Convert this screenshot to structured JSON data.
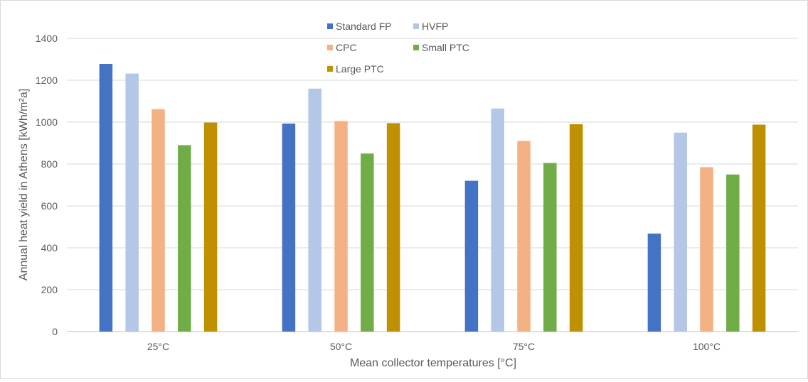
{
  "chart_data": {
    "type": "bar",
    "title": "",
    "xlabel": "Mean collector temperatures [°C]",
    "ylabel": "Annual heat yield in Athens [kWh/m²a]",
    "categories": [
      "25°C",
      "50°C",
      "75°C",
      "100°C"
    ],
    "ylim": [
      0,
      1400
    ],
    "yticks": [
      0,
      200,
      400,
      600,
      800,
      1000,
      1200,
      1400
    ],
    "grid": true,
    "legend_position": "top-center",
    "series": [
      {
        "name": "Standard FP",
        "color": "#4472c4",
        "values": [
          1278,
          993,
          720,
          468
        ]
      },
      {
        "name": "HVFP",
        "color": "#b4c7e7",
        "values": [
          1232,
          1160,
          1065,
          950
        ]
      },
      {
        "name": "CPC",
        "color": "#f4b183",
        "values": [
          1062,
          1005,
          910,
          785
        ]
      },
      {
        "name": "Small PTC",
        "color": "#70ad47",
        "values": [
          890,
          850,
          805,
          750
        ]
      },
      {
        "name": "Large PTC",
        "color": "#bf9000",
        "values": [
          998,
          995,
          990,
          988
        ]
      }
    ]
  }
}
